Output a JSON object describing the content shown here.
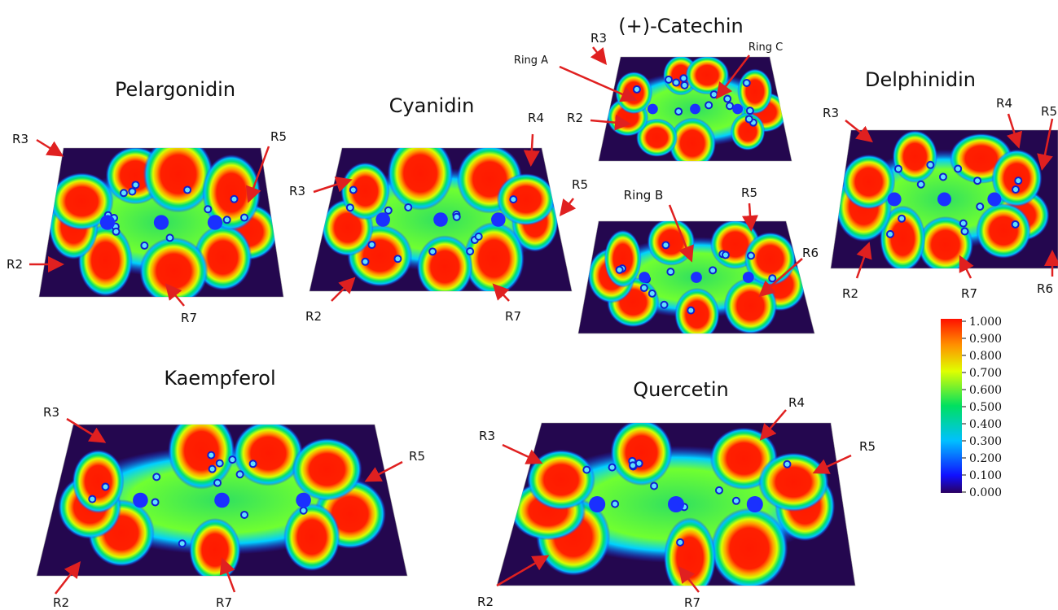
{
  "panels": [
    {
      "title": "Pelargonidin",
      "labels": [
        "R3",
        "R5",
        "R2",
        "R7"
      ]
    },
    {
      "title": "Cyanidin",
      "labels": [
        "R3",
        "R4",
        "R5",
        "R2",
        "R7"
      ]
    },
    {
      "title": "(+)-Catechin",
      "labels": [
        "R3",
        "Ring A",
        "Ring C",
        "R2",
        "Ring B",
        "R5",
        "R6"
      ]
    },
    {
      "title": "Delphinidin",
      "labels": [
        "R3",
        "R4",
        "R5",
        "R2",
        "R7",
        "R6"
      ]
    },
    {
      "title": "Kaempferol",
      "labels": [
        "R3",
        "R5",
        "R2",
        "R7"
      ]
    },
    {
      "title": "Quercetin",
      "labels": [
        "R3",
        "R4",
        "R5",
        "R2",
        "R7"
      ]
    }
  ],
  "colorbar": {
    "ticks": [
      {
        "value": 0,
        "label": "0.000"
      },
      {
        "value": 0.1,
        "label": "0.100"
      },
      {
        "value": 0.2,
        "label": "0.200"
      },
      {
        "value": 0.3,
        "label": "0.300"
      },
      {
        "value": 0.4,
        "label": "0.400"
      },
      {
        "value": 0.5,
        "label": "0.500"
      },
      {
        "value": 0.6,
        "label": "0.600"
      },
      {
        "value": 0.7,
        "label": "0.700"
      },
      {
        "value": 0.8,
        "label": "0.800"
      },
      {
        "value": 0.9,
        "label": "0.900"
      },
      {
        "value": 1,
        "label": "1.000"
      }
    ]
  }
}
